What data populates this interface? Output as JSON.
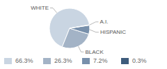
{
  "chart_data": {
    "type": "pie",
    "categories": [
      "WHITE",
      "BLACK",
      "HISPANIC",
      "A.I."
    ],
    "values": [
      66.3,
      26.3,
      7.2,
      0.3
    ],
    "value_labels": [
      "66.3%",
      "26.3%",
      "7.2%",
      "0.3%"
    ],
    "colors": [
      "#c9d5e2",
      "#a3b3c6",
      "#7890ab",
      "#3e5c7c"
    ]
  }
}
